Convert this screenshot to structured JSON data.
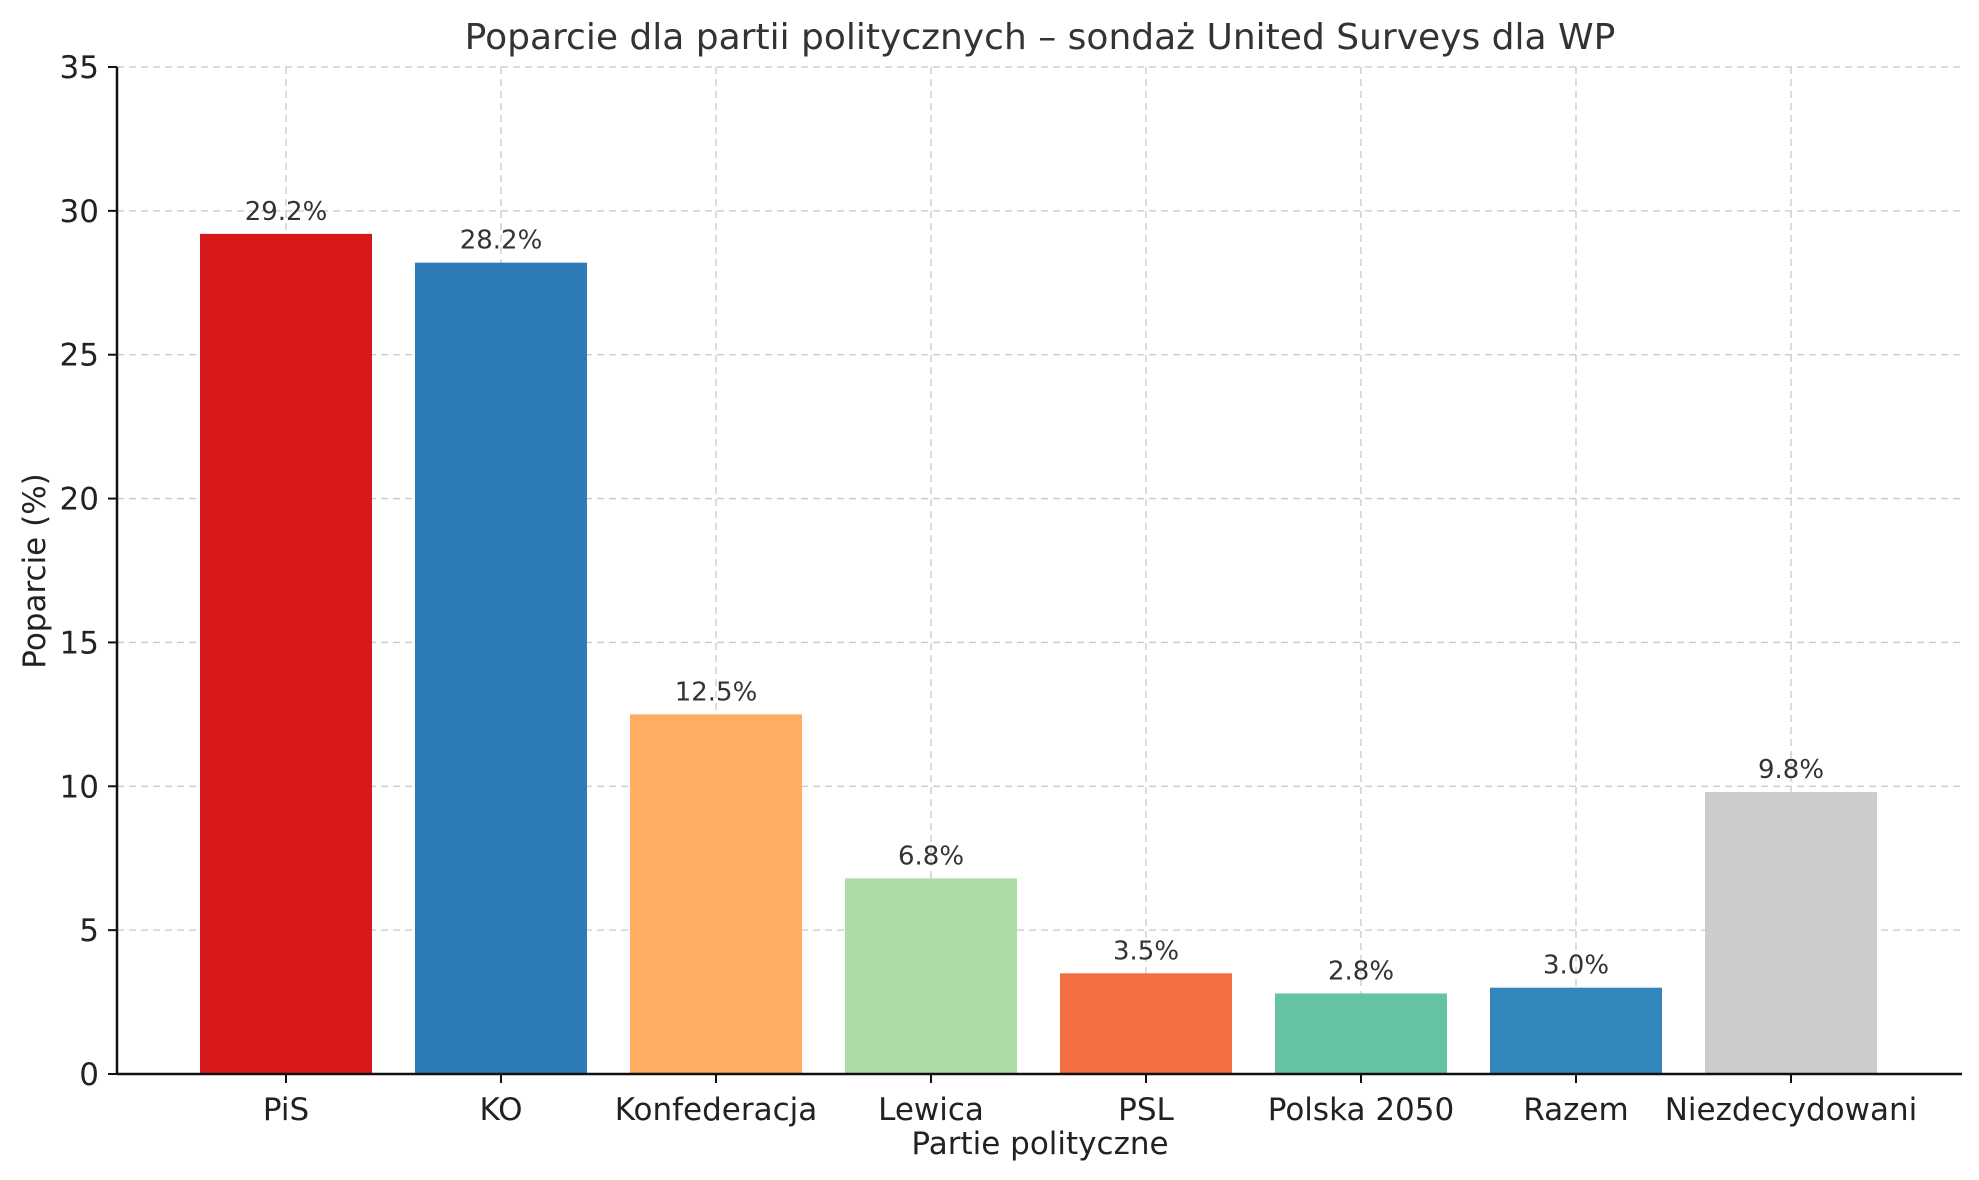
{
  "chart_data": {
    "type": "bar",
    "title": "Poparcie dla partii politycznych – sondaż United Surveys dla WP",
    "xlabel": "Partie polityczne",
    "ylabel": "Poparcie (%)",
    "ylim": [
      0,
      35
    ],
    "yticks": [
      0,
      5,
      10,
      15,
      20,
      25,
      30,
      35
    ],
    "grid": true,
    "categories": [
      "PiS",
      "KO",
      "Konfederacja",
      "Lewica",
      "PSL",
      "Polska 2050",
      "Razem",
      "Niezdecydowani"
    ],
    "values": [
      29.2,
      28.2,
      12.5,
      6.8,
      3.5,
      2.8,
      3.0,
      9.8
    ],
    "data_labels": [
      "29.2%",
      "28.2%",
      "12.5%",
      "6.8%",
      "3.5%",
      "2.8%",
      "3.0%",
      "9.8%"
    ],
    "colors": [
      "#d7191c",
      "#2c7bb6",
      "#fdae61",
      "#abdda4",
      "#f46d43",
      "#66c2a5",
      "#3288bd",
      "#cccccc"
    ]
  }
}
